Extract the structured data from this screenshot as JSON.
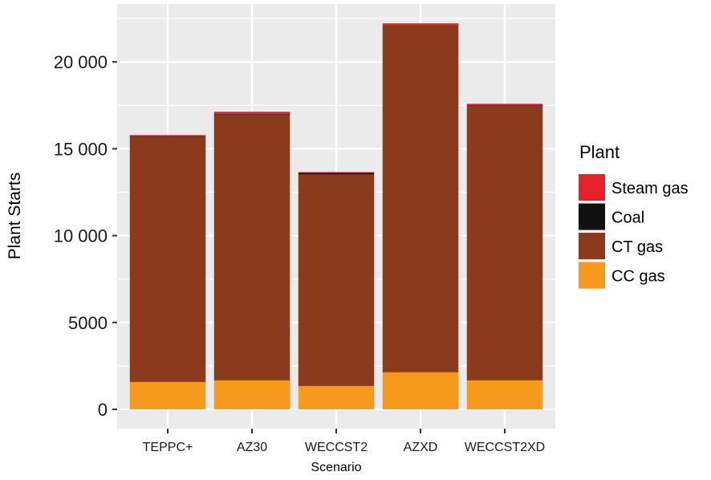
{
  "chart_data": {
    "type": "bar",
    "stacked": true,
    "title": "",
    "xlabel": "Scenario",
    "ylabel": "Plant Starts",
    "ylim": [
      -1111,
      23333
    ],
    "yticks": [
      0,
      5000,
      10000,
      15000,
      20000
    ],
    "ytick_labels": [
      "0",
      "5000",
      "10 000",
      "15 000",
      "20 000"
    ],
    "grid": true,
    "categories": [
      "TEPPC+",
      "AZ30",
      "WECCST2",
      "AZXD",
      "WECCST2XD"
    ],
    "series": [
      {
        "name": "CC gas",
        "color": "#F7991C",
        "values": [
          1574,
          1667,
          1343,
          2130,
          1667
        ]
      },
      {
        "name": "CT gas",
        "color": "#8B3A1C",
        "values": [
          14076,
          15273,
          12177,
          19930,
          15783
        ]
      },
      {
        "name": "Coal",
        "color": "#111111",
        "values": [
          50,
          50,
          90,
          20,
          50
        ]
      },
      {
        "name": "Steam gas",
        "color": "#E8202A",
        "values": [
          90,
          140,
          50,
          140,
          90
        ]
      }
    ],
    "legend": {
      "title": "Plant",
      "position": "right",
      "entries": [
        "Steam gas",
        "Coal",
        "CT gas",
        "CC gas"
      ]
    }
  },
  "style": {
    "panel_bg": "#EBEBEB",
    "grid_color": "#FFFFFF"
  }
}
